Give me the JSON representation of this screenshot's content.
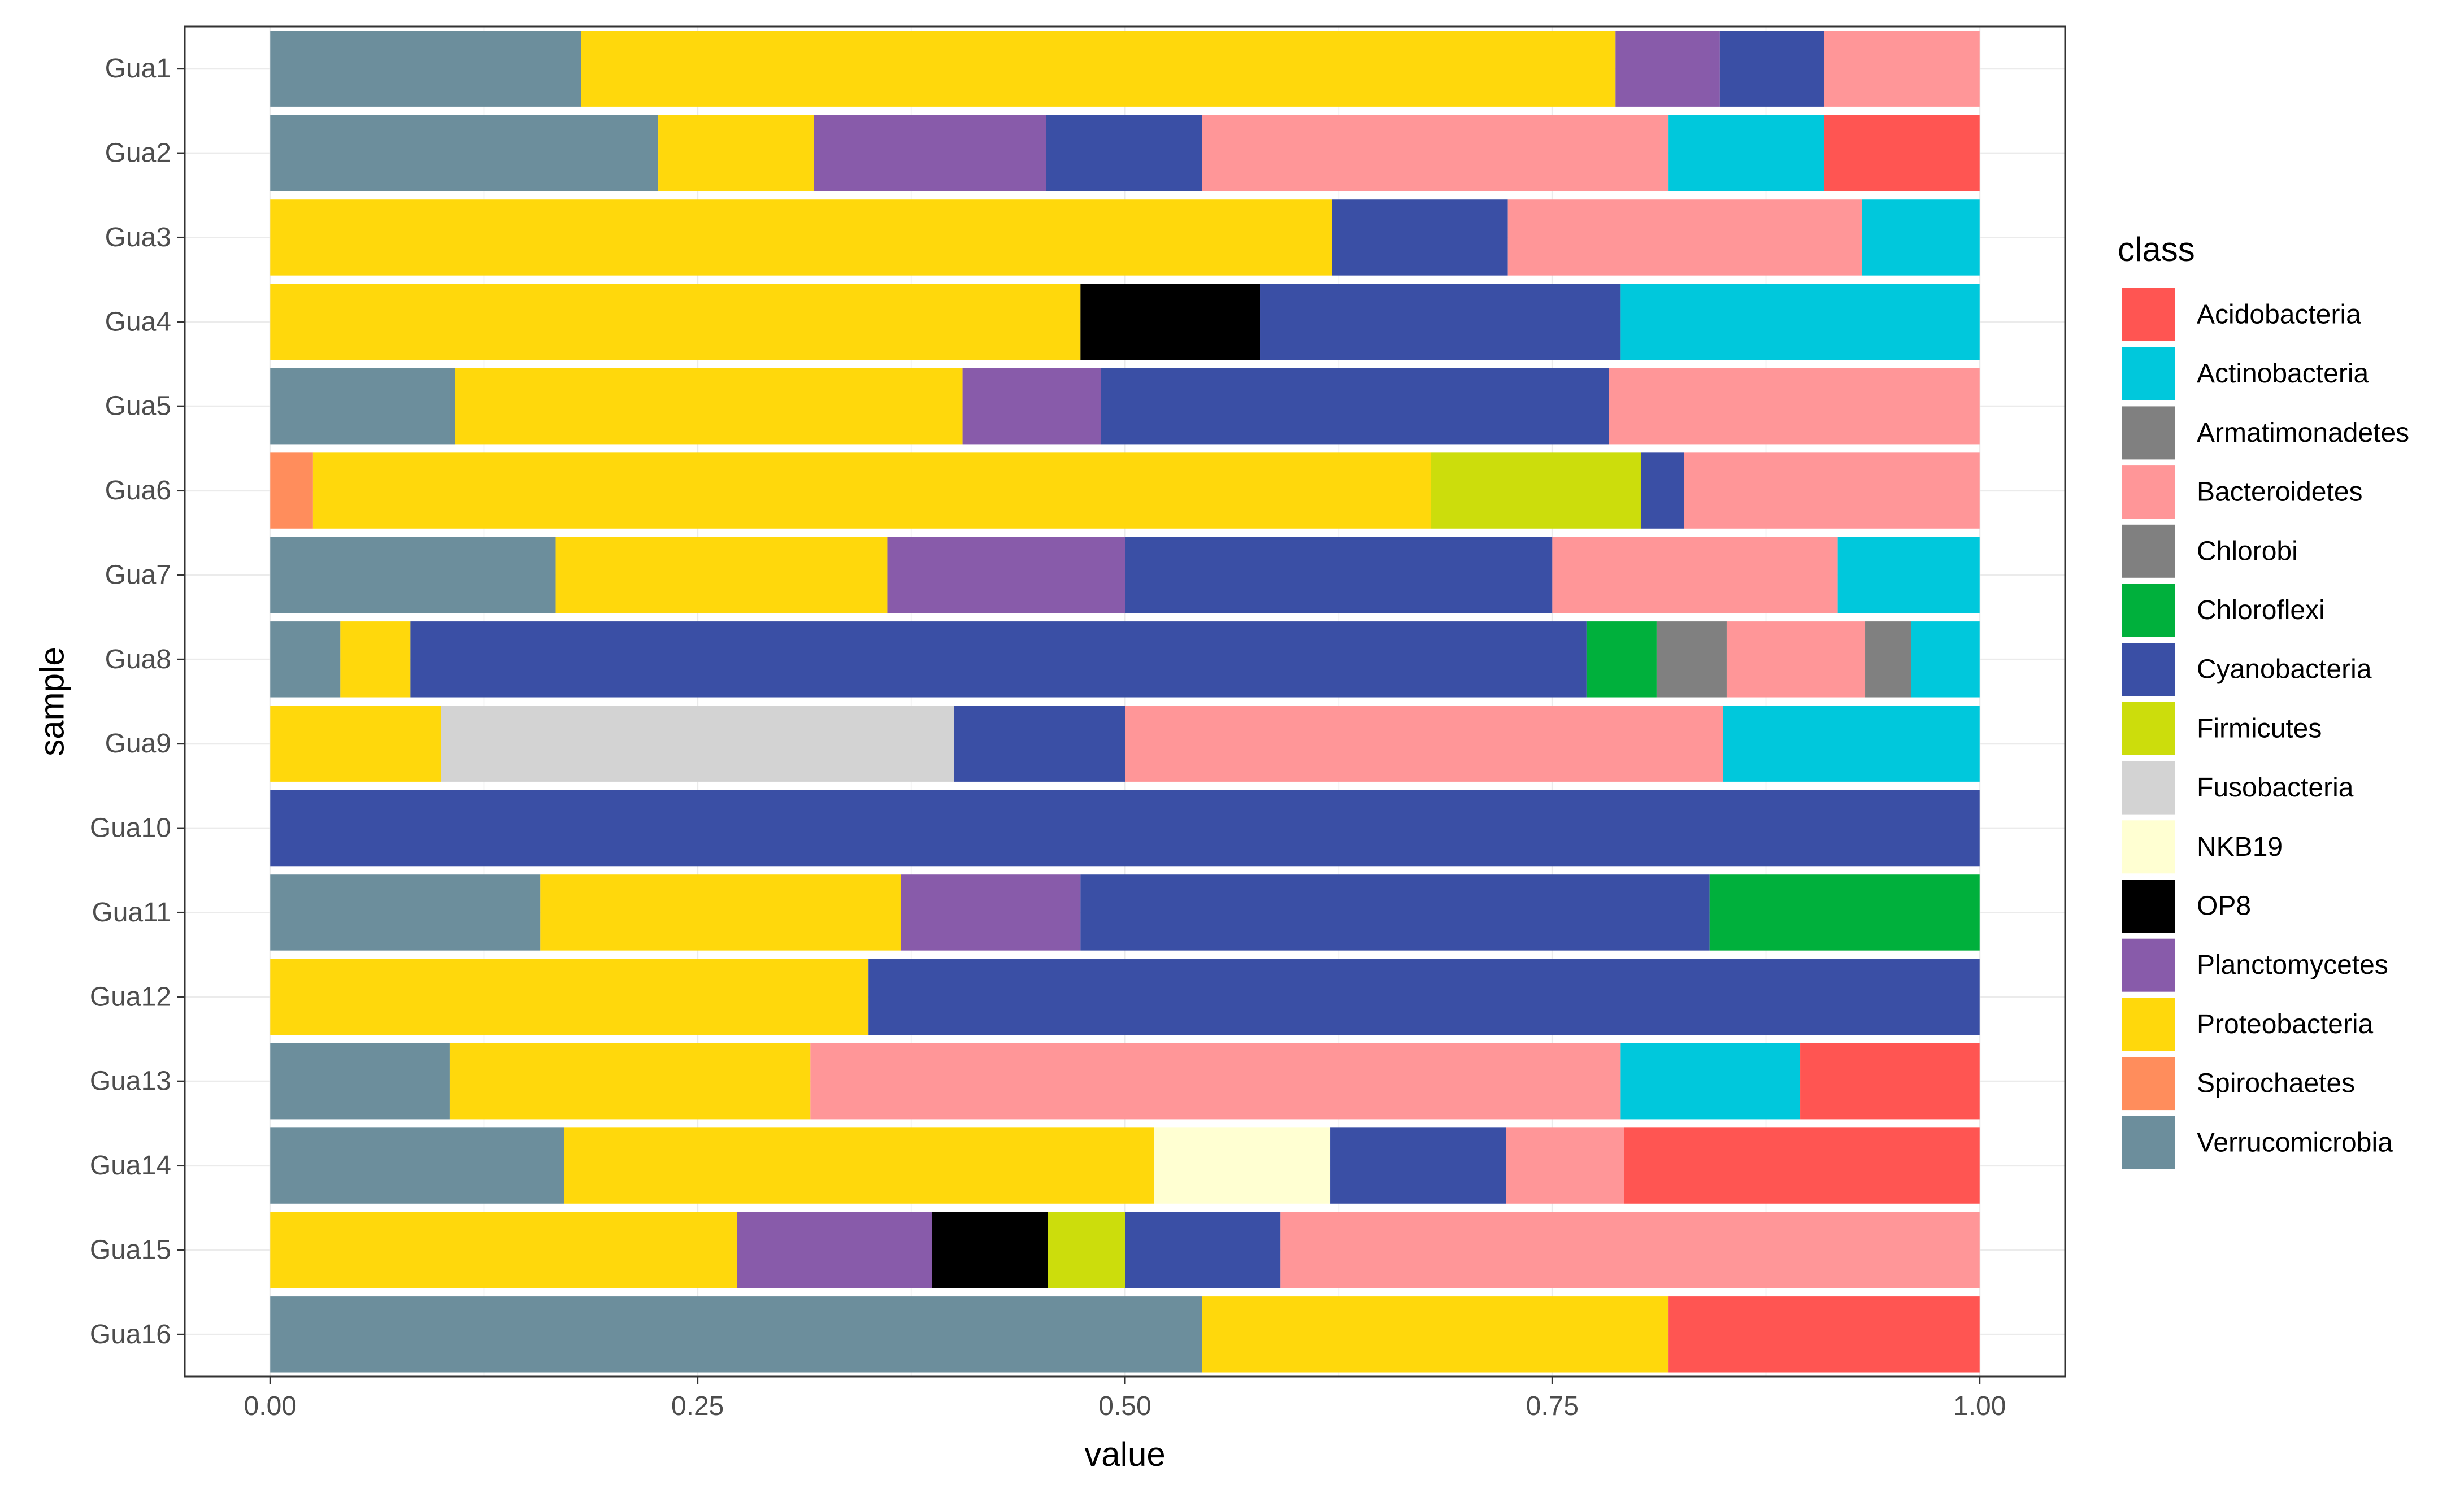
{
  "chart_data": {
    "type": "bar",
    "orientation": "horizontal",
    "stacked": true,
    "xlabel": "value",
    "ylabel": "sample",
    "xlim": [
      -0.05,
      1.05
    ],
    "x_ticks": [
      0,
      0.25,
      0.5,
      0.75,
      1
    ],
    "x_tick_labels": [
      "0.00",
      "0.25",
      "0.50",
      "0.75",
      "1.00"
    ],
    "grid": true,
    "legend_position": "right",
    "legend_title": "class",
    "classes": [
      {
        "name": "Acidobacteria",
        "color": "#FF5552"
      },
      {
        "name": "Actinobacteria",
        "color": "#00C8DC"
      },
      {
        "name": "Armatimonadetes",
        "color": "#808080"
      },
      {
        "name": "Bacteroidetes",
        "color": "#FF9698"
      },
      {
        "name": "Chlorobi",
        "color": "#808080"
      },
      {
        "name": "Chloroflexi",
        "color": "#00B03C"
      },
      {
        "name": "Cyanobacteria",
        "color": "#3A4FA5"
      },
      {
        "name": "Firmicutes",
        "color": "#CCDD0C"
      },
      {
        "name": "Fusobacteria",
        "color": "#D3D3D3"
      },
      {
        "name": "NKB19",
        "color": "#FFFFD2"
      },
      {
        "name": "OP8",
        "color": "#000000"
      },
      {
        "name": "Planctomycetes",
        "color": "#885BAA"
      },
      {
        "name": "Proteobacteria",
        "color": "#FFD80C"
      },
      {
        "name": "Spirochaetes",
        "color": "#FF8D5C"
      },
      {
        "name": "Verrucomicrobia",
        "color": "#6C8E9C"
      }
    ],
    "samples": [
      {
        "name": "Gua1",
        "segments": [
          [
            "Verrucomicrobia",
            0.182
          ],
          [
            "Proteobacteria",
            0.605
          ],
          [
            "Planctomycetes",
            0.061
          ],
          [
            "Cyanobacteria",
            0.061
          ],
          [
            "Bacteroidetes",
            0.091
          ]
        ]
      },
      {
        "name": "Gua2",
        "segments": [
          [
            "Verrucomicrobia",
            0.227
          ],
          [
            "Proteobacteria",
            0.091
          ],
          [
            "Planctomycetes",
            0.136
          ],
          [
            "Cyanobacteria",
            0.091
          ],
          [
            "Bacteroidetes",
            0.273
          ],
          [
            "Actinobacteria",
            0.091
          ],
          [
            "Acidobacteria",
            0.091
          ]
        ]
      },
      {
        "name": "Gua3",
        "segments": [
          [
            "Proteobacteria",
            0.621
          ],
          [
            "Cyanobacteria",
            0.103
          ],
          [
            "Bacteroidetes",
            0.207
          ],
          [
            "Actinobacteria",
            0.069
          ]
        ]
      },
      {
        "name": "Gua4",
        "segments": [
          [
            "Proteobacteria",
            0.474
          ],
          [
            "OP8",
            0.105
          ],
          [
            "Cyanobacteria",
            0.211
          ],
          [
            "Actinobacteria",
            0.21
          ]
        ]
      },
      {
        "name": "Gua5",
        "segments": [
          [
            "Verrucomicrobia",
            0.108
          ],
          [
            "Proteobacteria",
            0.297
          ],
          [
            "Planctomycetes",
            0.081
          ],
          [
            "Cyanobacteria",
            0.297
          ],
          [
            "Bacteroidetes",
            0.217
          ]
        ]
      },
      {
        "name": "Gua6",
        "segments": [
          [
            "Spirochaetes",
            0.025
          ],
          [
            "Proteobacteria",
            0.654
          ],
          [
            "Firmicutes",
            0.123
          ],
          [
            "Cyanobacteria",
            0.025
          ],
          [
            "Bacteroidetes",
            0.173
          ]
        ]
      },
      {
        "name": "Gua7",
        "segments": [
          [
            "Verrucomicrobia",
            0.167
          ],
          [
            "Proteobacteria",
            0.194
          ],
          [
            "Planctomycetes",
            0.139
          ],
          [
            "Cyanobacteria",
            0.25
          ],
          [
            "Bacteroidetes",
            0.167
          ],
          [
            "Actinobacteria",
            0.083
          ]
        ]
      },
      {
        "name": "Gua8",
        "segments": [
          [
            "Verrucomicrobia",
            0.041
          ],
          [
            "Proteobacteria",
            0.041
          ],
          [
            "Cyanobacteria",
            0.688
          ],
          [
            "Chloroflexi",
            0.041
          ],
          [
            "Chlorobi",
            0.041
          ],
          [
            "Bacteroidetes",
            0.081
          ],
          [
            "Armatimonadetes",
            0.027
          ],
          [
            "Actinobacteria",
            0.04
          ]
        ]
      },
      {
        "name": "Gua9",
        "segments": [
          [
            "Proteobacteria",
            0.1
          ],
          [
            "Fusobacteria",
            0.3
          ],
          [
            "Cyanobacteria",
            0.1
          ],
          [
            "Bacteroidetes",
            0.35
          ],
          [
            "Actinobacteria",
            0.15
          ]
        ]
      },
      {
        "name": "Gua10",
        "segments": [
          [
            "Cyanobacteria",
            1.0
          ]
        ]
      },
      {
        "name": "Gua11",
        "segments": [
          [
            "Verrucomicrobia",
            0.158
          ],
          [
            "Proteobacteria",
            0.211
          ],
          [
            "Planctomycetes",
            0.105
          ],
          [
            "Cyanobacteria",
            0.368
          ],
          [
            "Chloroflexi",
            0.158
          ]
        ]
      },
      {
        "name": "Gua12",
        "segments": [
          [
            "Proteobacteria",
            0.35
          ],
          [
            "Cyanobacteria",
            0.65
          ]
        ]
      },
      {
        "name": "Gua13",
        "segments": [
          [
            "Verrucomicrobia",
            0.105
          ],
          [
            "Proteobacteria",
            0.211
          ],
          [
            "Bacteroidetes",
            0.474
          ],
          [
            "Actinobacteria",
            0.105
          ],
          [
            "Acidobacteria",
            0.105
          ]
        ]
      },
      {
        "name": "Gua14",
        "segments": [
          [
            "Verrucomicrobia",
            0.172
          ],
          [
            "Proteobacteria",
            0.345
          ],
          [
            "NKB19",
            0.103
          ],
          [
            "Cyanobacteria",
            0.103
          ],
          [
            "Bacteroidetes",
            0.069
          ],
          [
            "Acidobacteria",
            0.208
          ]
        ]
      },
      {
        "name": "Gua15",
        "segments": [
          [
            "Proteobacteria",
            0.273
          ],
          [
            "Planctomycetes",
            0.114
          ],
          [
            "OP8",
            0.068
          ],
          [
            "Firmicutes",
            0.045
          ],
          [
            "Cyanobacteria",
            0.091
          ],
          [
            "Bacteroidetes",
            0.409
          ]
        ]
      },
      {
        "name": "Gua16",
        "segments": [
          [
            "Verrucomicrobia",
            0.545
          ],
          [
            "Proteobacteria",
            0.273
          ],
          [
            "Acidobacteria",
            0.182
          ]
        ]
      }
    ]
  }
}
